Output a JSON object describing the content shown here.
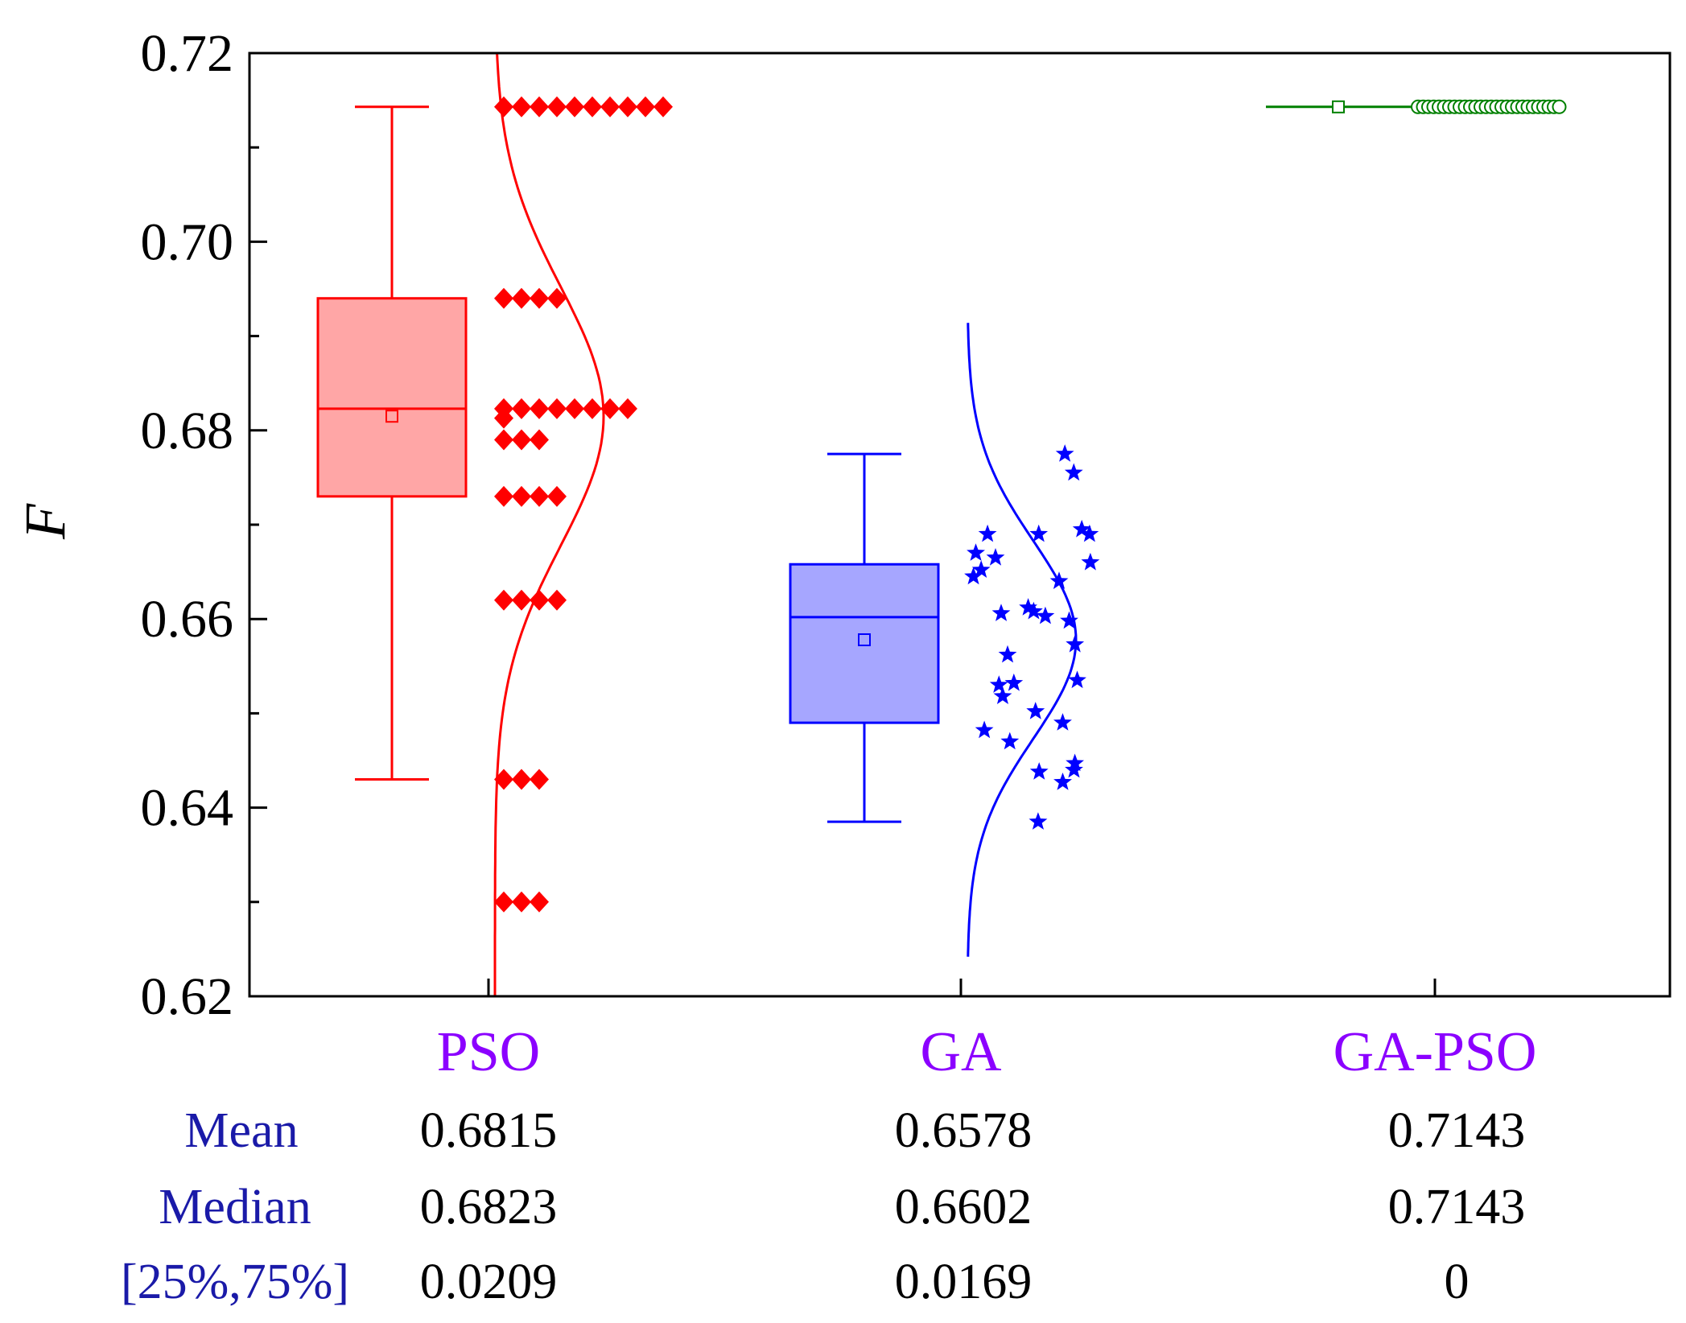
{
  "chart_data": {
    "type": "box",
    "ylabel": "F",
    "ylim": [
      0.62,
      0.72
    ],
    "yticks": [
      "0.62",
      "0.64",
      "0.66",
      "0.68",
      "0.70",
      "0.72"
    ],
    "yticks_values": [
      0.62,
      0.64,
      0.66,
      0.68,
      0.7,
      0.72
    ],
    "minor_ticks": [
      0.63,
      0.65,
      0.67,
      0.69,
      0.71
    ],
    "categories": [
      "PSO",
      "GA",
      "GA-PSO"
    ],
    "series": [
      {
        "name": "PSO",
        "color": "#ff0000",
        "fill": "#ffa6a6",
        "marker": "diamond",
        "whisker_low": 0.643,
        "q1": 0.673,
        "median": 0.6823,
        "q3": 0.694,
        "whisker_high": 0.7143,
        "mean": 0.6815,
        "curve_sd": 0.0137,
        "points": [
          0.7143,
          0.7143,
          0.7143,
          0.7143,
          0.7143,
          0.7143,
          0.7143,
          0.7143,
          0.7143,
          0.7143,
          0.694,
          0.694,
          0.694,
          0.694,
          0.6823,
          0.6823,
          0.6823,
          0.6823,
          0.6823,
          0.6823,
          0.6823,
          0.6823,
          0.6813,
          0.679,
          0.679,
          0.679,
          0.673,
          0.673,
          0.673,
          0.673,
          0.662,
          0.662,
          0.662,
          0.662,
          0.643,
          0.643,
          0.643,
          0.63,
          0.63,
          0.63
        ]
      },
      {
        "name": "GA",
        "color": "#0000ff",
        "fill": "#a6a6ff",
        "marker": "star",
        "whisker_low": 0.6385,
        "q1": 0.649,
        "median": 0.6602,
        "q3": 0.6658,
        "whisker_high": 0.6775,
        "mean": 0.6578,
        "curve_sd": 0.0105,
        "points": [
          0.6775,
          0.6755,
          0.669,
          0.669,
          0.669,
          0.6695,
          0.667,
          0.6665,
          0.666,
          0.6652,
          0.6645,
          0.664,
          0.6612,
          0.6608,
          0.6606,
          0.6603,
          0.6598,
          0.6573,
          0.6562,
          0.6535,
          0.6532,
          0.653,
          0.6518,
          0.6502,
          0.649,
          0.6482,
          0.647,
          0.6447,
          0.644,
          0.6438,
          0.6427,
          0.6385
        ]
      },
      {
        "name": "GA-PSO",
        "color": "#008000",
        "fill": "#a6d6a6",
        "marker": "circle",
        "whisker_low": 0.7143,
        "q1": 0.7143,
        "median": 0.7143,
        "q3": 0.7143,
        "whisker_high": 0.7143,
        "mean": 0.7143,
        "points": [
          0.7143,
          0.7143,
          0.7143,
          0.7143,
          0.7143,
          0.7143,
          0.7143,
          0.7143,
          0.7143,
          0.7143,
          0.7143,
          0.7143,
          0.7143,
          0.7143,
          0.7143,
          0.7143,
          0.7143,
          0.7143,
          0.7143,
          0.7143,
          0.7143,
          0.7143,
          0.7143,
          0.7143,
          0.7143,
          0.7143,
          0.7143,
          0.7143
        ]
      }
    ]
  },
  "stats_table": {
    "rows": [
      {
        "label": "Mean",
        "values": [
          "0.6815",
          "0.6578",
          "0.7143"
        ]
      },
      {
        "label": "Median",
        "values": [
          "0.6823",
          "0.6602",
          "0.7143"
        ]
      },
      {
        "label": "[25%,75%]",
        "values": [
          "0.0209",
          "0.0169",
          "0"
        ]
      }
    ]
  }
}
